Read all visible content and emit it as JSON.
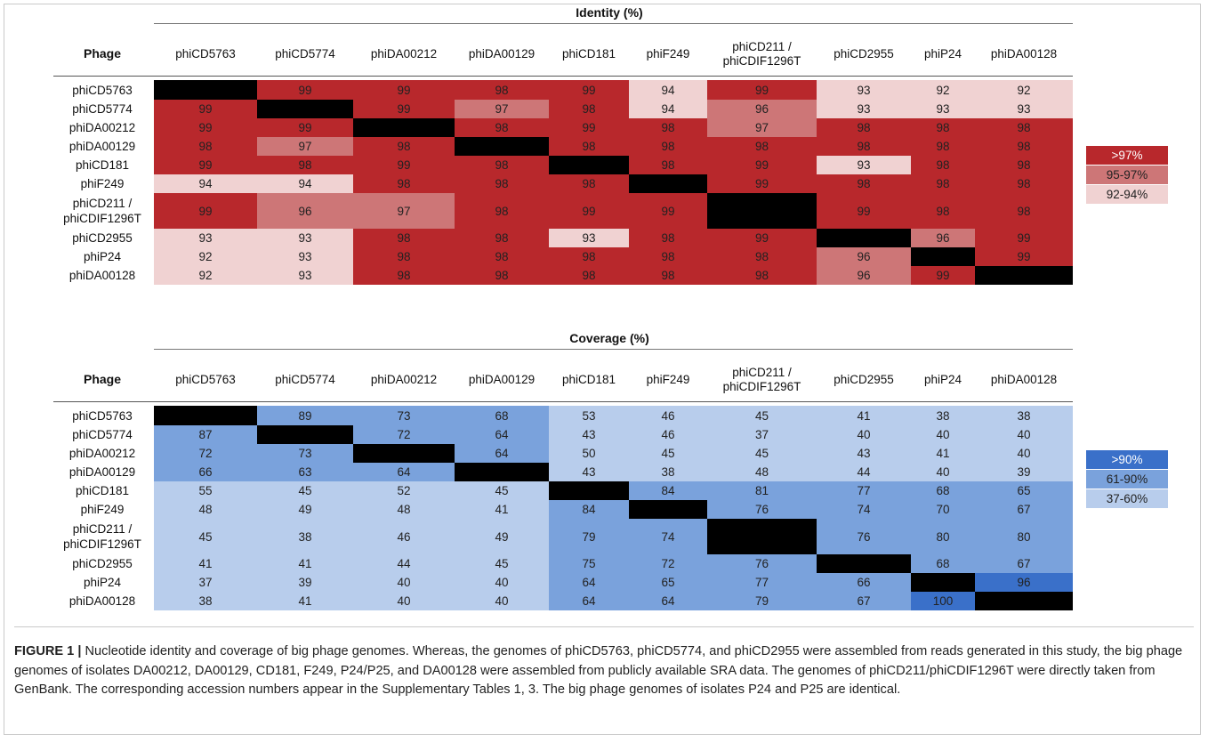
{
  "phages": [
    "phiCD5763",
    "phiCD5774",
    "phiDA00212",
    "phiDA00129",
    "phiCD181",
    "phiF249",
    "phiCD211 / phiCDIF1296T",
    "phiCD2955",
    "phiP24",
    "phiDA00128"
  ],
  "identity": {
    "title": "Identity (%)",
    "phage_header": "Phage",
    "columns": [
      "phiCD5763",
      "phiCD5774",
      "phiDA00212",
      "phiDA00129",
      "phiCD181",
      "phiF249",
      "phiCD211 /\nphiCDIF1296T",
      "phiCD2955",
      "phiP24",
      "phiDA00128"
    ],
    "rows": [
      "phiCD5763",
      "phiCD5774",
      "phiDA00212",
      "phiDA00129",
      "phiCD181",
      "phiF249",
      "phiCD211 /\nphiCDIF1296T",
      "phiCD2955",
      "phiP24",
      "phiDA00128"
    ],
    "legend": [
      {
        "label": ">97%",
        "color": "#b8282c"
      },
      {
        "label": "95-97%",
        "color": "#cd7677"
      },
      {
        "label": "92-94%",
        "color": "#f0d2d2"
      }
    ]
  },
  "coverage": {
    "title": "Coverage (%)",
    "phage_header": "Phage",
    "columns": [
      "phiCD5763",
      "phiCD5774",
      "phiDA00212",
      "phiDA00129",
      "phiCD181",
      "phiF249",
      "phiCD211 /\nphiCDIF1296T",
      "phiCD2955",
      "phiP24",
      "phiDA00128"
    ],
    "rows": [
      "phiCD5763",
      "phiCD5774",
      "phiDA00212",
      "phiDA00129",
      "phiCD181",
      "phiF249",
      "phiCD211 /\nphiCDIF1296T",
      "phiCD2955",
      "phiP24",
      "phiDA00128"
    ],
    "legend": [
      {
        "label": ">90%",
        "color": "#3a70c9"
      },
      {
        "label": "61-90%",
        "color": "#7aa2dc"
      },
      {
        "label": "37-60%",
        "color": "#b8cdec"
      }
    ]
  },
  "chart_data": [
    {
      "type": "heatmap",
      "title": "Identity (%)",
      "row_header": "Phage",
      "rows": [
        "phiCD5763",
        "phiCD5774",
        "phiDA00212",
        "phiDA00129",
        "phiCD181",
        "phiF249",
        "phiCD211 / phiCDIF1296T",
        "phiCD2955",
        "phiP24",
        "phiDA00128"
      ],
      "columns": [
        "phiCD5763",
        "phiCD5774",
        "phiDA00212",
        "phiDA00129",
        "phiCD181",
        "phiF249",
        "phiCD211 / phiCDIF1296T",
        "phiCD2955",
        "phiP24",
        "phiDA00128"
      ],
      "values": [
        [
          null,
          99,
          99,
          98,
          99,
          94,
          99,
          93,
          92,
          92
        ],
        [
          99,
          null,
          99,
          97,
          98,
          94,
          96,
          93,
          93,
          93
        ],
        [
          99,
          99,
          null,
          98,
          99,
          98,
          97,
          98,
          98,
          98
        ],
        [
          98,
          97,
          98,
          null,
          98,
          98,
          98,
          98,
          98,
          98
        ],
        [
          99,
          98,
          99,
          98,
          null,
          98,
          99,
          93,
          98,
          98
        ],
        [
          94,
          94,
          98,
          98,
          98,
          null,
          99,
          98,
          98,
          98
        ],
        [
          99,
          96,
          97,
          98,
          99,
          99,
          null,
          99,
          98,
          98
        ],
        [
          93,
          93,
          98,
          98,
          93,
          98,
          99,
          null,
          96,
          99
        ],
        [
          92,
          93,
          98,
          98,
          98,
          98,
          98,
          96,
          null,
          99
        ],
        [
          92,
          93,
          98,
          98,
          98,
          98,
          98,
          96,
          99,
          null
        ]
      ],
      "diagonal_color": "#000000",
      "legend_placement": "right",
      "legend": [
        {
          "label": ">97%",
          "color": "#b8282c"
        },
        {
          "label": "95-97%",
          "color": "#cd7677"
        },
        {
          "label": "92-94%",
          "color": "#f0d2d2"
        }
      ]
    },
    {
      "type": "heatmap",
      "title": "Coverage (%)",
      "row_header": "Phage",
      "rows": [
        "phiCD5763",
        "phiCD5774",
        "phiDA00212",
        "phiDA00129",
        "phiCD181",
        "phiF249",
        "phiCD211 / phiCDIF1296T",
        "phiCD2955",
        "phiP24",
        "phiDA00128"
      ],
      "columns": [
        "phiCD5763",
        "phiCD5774",
        "phiDA00212",
        "phiDA00129",
        "phiCD181",
        "phiF249",
        "phiCD211 / phiCDIF1296T",
        "phiCD2955",
        "phiP24",
        "phiDA00128"
      ],
      "values": [
        [
          null,
          89,
          73,
          68,
          53,
          46,
          45,
          41,
          38,
          38
        ],
        [
          87,
          null,
          72,
          64,
          43,
          46,
          37,
          40,
          40,
          40
        ],
        [
          72,
          73,
          null,
          64,
          50,
          45,
          45,
          43,
          41,
          40
        ],
        [
          66,
          63,
          64,
          null,
          43,
          38,
          48,
          44,
          40,
          39
        ],
        [
          55,
          45,
          52,
          45,
          null,
          84,
          81,
          77,
          68,
          65
        ],
        [
          48,
          49,
          48,
          41,
          84,
          null,
          76,
          74,
          70,
          67
        ],
        [
          45,
          38,
          46,
          49,
          79,
          74,
          null,
          76,
          80,
          80
        ],
        [
          41,
          41,
          44,
          45,
          75,
          72,
          76,
          null,
          68,
          67
        ],
        [
          37,
          39,
          40,
          40,
          64,
          65,
          77,
          66,
          null,
          96
        ],
        [
          38,
          41,
          40,
          40,
          64,
          64,
          79,
          67,
          100,
          null
        ]
      ],
      "diagonal_color": "#000000",
      "legend_placement": "right",
      "legend": [
        {
          "label": ">90%",
          "color": "#3a70c9"
        },
        {
          "label": "61-90%",
          "color": "#7aa2dc"
        },
        {
          "label": "37-60%",
          "color": "#b8cdec"
        }
      ]
    }
  ],
  "caption": {
    "label": "FIGURE 1 |",
    "text": " Nucleotide identity and coverage of big phage genomes. Whereas, the genomes of phiCD5763, phiCD5774, and phiCD2955 were assembled from reads generated in this study, the big phage genomes of isolates DA00212, DA00129, CD181, F249, P24/P25, and DA00128 were assembled from publicly available SRA data. The genomes of phiCD211/phiCDIF1296T were directly taken from GenBank. The corresponding accession numbers appear in the Supplementary Tables 1, 3. The big phage genomes of isolates P24 and P25 are identical."
  }
}
